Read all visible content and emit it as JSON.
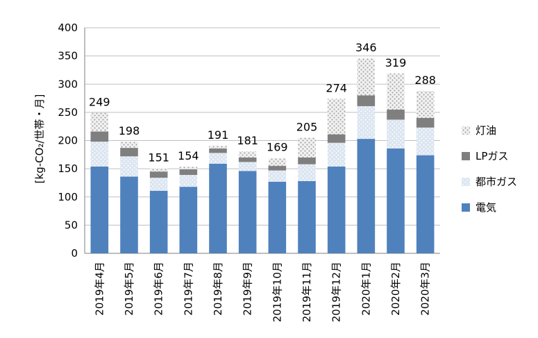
{
  "chart_data": {
    "type": "bar",
    "stacked": true,
    "ylabel": "[kg-CO₂/世帯・月]",
    "ylim": [
      0,
      400
    ],
    "yticks": [
      0,
      50,
      100,
      150,
      200,
      250,
      300,
      350,
      400
    ],
    "grid": true,
    "legend": "right",
    "categories": [
      "2019年4月",
      "2019年5月",
      "2019年6月",
      "2019年7月",
      "2019年8月",
      "2019年9月",
      "2019年10月",
      "2019年11月",
      "2019年12月",
      "2020年1月",
      "2020年2月",
      "2020年3月"
    ],
    "series": [
      {
        "name": "電気",
        "color": "#4f81bd",
        "pattern": "solid",
        "values": [
          154,
          136,
          111,
          118,
          159,
          146,
          127,
          128,
          154,
          203,
          186,
          174
        ]
      },
      {
        "name": "都市ガス",
        "color": "#b9cde5",
        "pattern": "dots-light",
        "values": [
          44,
          36,
          23,
          21,
          19,
          16,
          20,
          30,
          42,
          58,
          51,
          49
        ]
      },
      {
        "name": "LPガス",
        "color": "#7f7f7f",
        "pattern": "solid",
        "values": [
          18,
          15,
          11,
          10,
          8,
          8,
          8,
          12,
          15,
          19,
          18,
          17
        ]
      },
      {
        "name": "灯油",
        "color": "#d9d9d9",
        "pattern": "dots-gray",
        "values": [
          33,
          11,
          6,
          5,
          5,
          11,
          14,
          35,
          63,
          66,
          64,
          48
        ]
      }
    ],
    "totals": [
      249,
      198,
      151,
      154,
      191,
      181,
      169,
      205,
      274,
      346,
      319,
      288
    ]
  }
}
